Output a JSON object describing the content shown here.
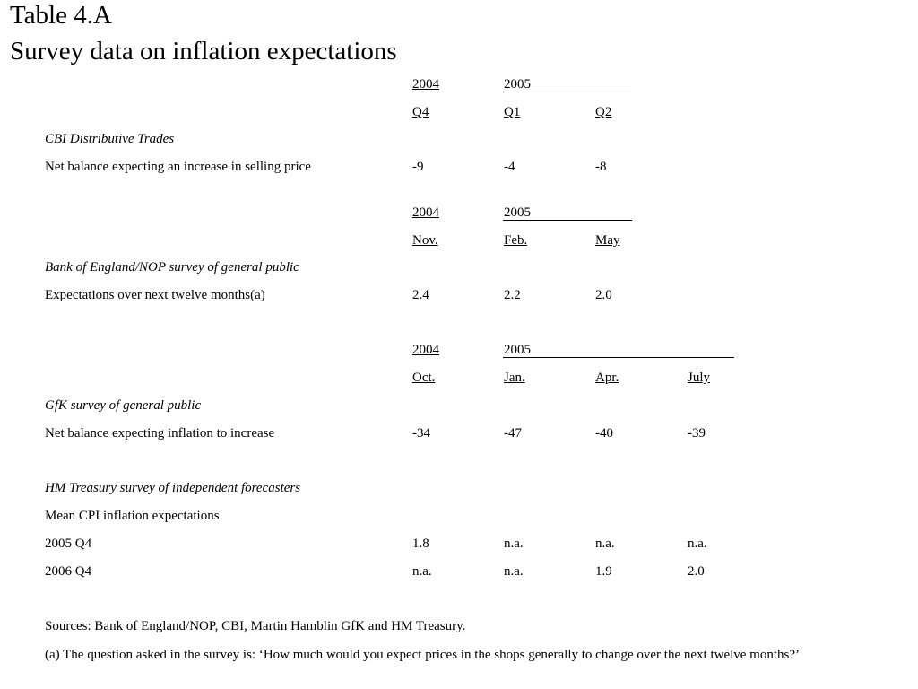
{
  "title": {
    "line1": "Table 4.A",
    "line2": "Survey data on inflation expectations"
  },
  "cbi": {
    "years": [
      "2004",
      "2005"
    ],
    "periods": [
      "Q4",
      "Q1",
      "Q2"
    ],
    "heading": "CBI Distributive Trades",
    "row_label": "Net balance expecting an increase in selling price",
    "values": [
      "-9",
      "-4",
      "-8"
    ]
  },
  "boe": {
    "years": [
      "2004",
      "2005"
    ],
    "periods": [
      "Nov.",
      "Feb.",
      "May"
    ],
    "heading": "Bank of England/NOP survey of general public",
    "row_label": "Expectations over next twelve months(a)",
    "values": [
      "2.4",
      "2.2",
      "2.0"
    ]
  },
  "gfk": {
    "years": [
      "2004",
      "2005"
    ],
    "periods": [
      "Oct.",
      "Jan.",
      "Apr.",
      "July"
    ],
    "heading": "GfK survey of general public",
    "row_label": "Net balance expecting inflation to increase",
    "values": [
      "-34",
      "-47",
      "-40",
      "-39"
    ]
  },
  "hmt": {
    "heading": "HM Treasury survey of independent forecasters",
    "subheading": "Mean CPI inflation expectations",
    "rows": [
      {
        "label": "2005 Q4",
        "values": [
          "1.8",
          "n.a.",
          "n.a.",
          "n.a."
        ]
      },
      {
        "label": "2006 Q4",
        "values": [
          "n.a.",
          "n.a.",
          "1.9",
          "2.0"
        ]
      }
    ]
  },
  "sources": "Sources:  Bank of England/NOP, CBI, Martin Hamblin GfK and HM Treasury.",
  "footnote": "(a)  The question asked in the survey is:  ‘How much would you expect prices in the shops generally to change over the next twelve months?’"
}
